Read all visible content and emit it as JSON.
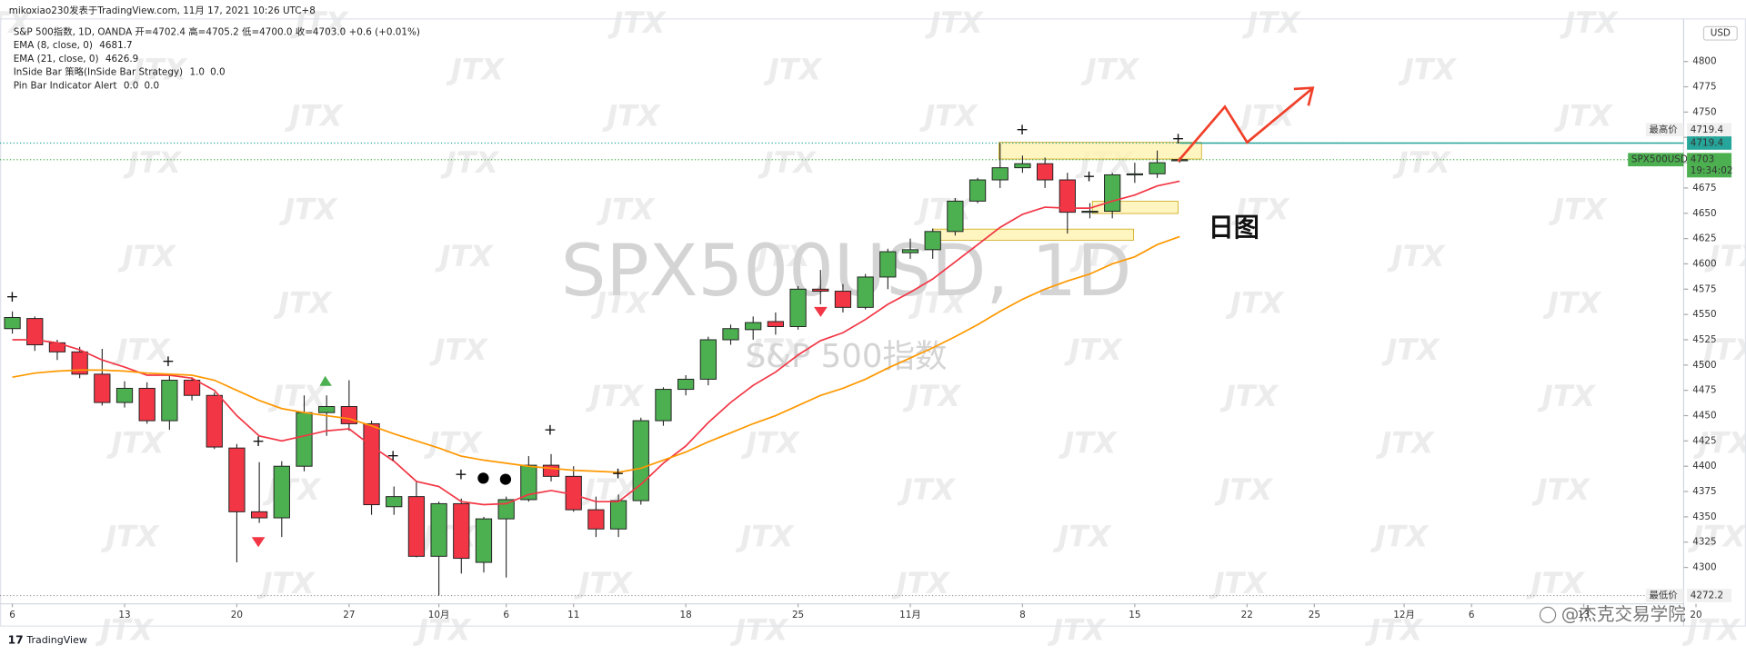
{
  "header": {
    "author_line": "mikoxiao230发表于TradingView.com, 11月 17, 2021 10:26 UTC+8",
    "symbol_line": "S&P 500指数, 1D, OANDA  开=4702.4  高=4705.2  低=4700.0  收=4703.0  +0.6 (+0.01%)",
    "indicators": [
      {
        "name": "EMA (8, close, 0)",
        "values": [
          {
            "text": "4681.7",
            "color": "#f23645"
          }
        ]
      },
      {
        "name": "EMA (21, close, 0)",
        "values": [
          {
            "text": "4626.9",
            "color": "#ff9800"
          }
        ]
      },
      {
        "name": "InSide Bar 策略(InSide Bar Strategy)",
        "values": [
          {
            "text": "1.0",
            "color": "#222222"
          },
          {
            "text": "0.0",
            "color": "#222222"
          }
        ]
      },
      {
        "name": "Pin Bar Indicator Alert",
        "values": [
          {
            "text": "0.0",
            "color": "#4caf50"
          },
          {
            "text": "0.0",
            "color": "#f23645"
          }
        ]
      }
    ]
  },
  "branding": {
    "logo": "TradingView",
    "watermark_text": "JTX",
    "author_tag": "@杰克交易学院"
  },
  "annotation": "日图",
  "chart_data": {
    "type": "candlestick",
    "title": "SPX500USD, 1D",
    "subtitle": "S&P 500指数",
    "up_color": "#4caf50",
    "down_color": "#f23645",
    "open": [
      4536,
      4546,
      4522,
      4513,
      4491,
      4463,
      4477,
      4445,
      4485,
      4470,
      4418,
      4355,
      4349,
      4400,
      4453,
      4459,
      4442,
      4360,
      4370,
      4311,
      4363,
      4305,
      4348,
      4367,
      4401,
      4390,
      4357,
      4338,
      4366,
      4445,
      4476,
      4486,
      4525,
      4535,
      4543,
      4538,
      4575,
      4573,
      4557,
      4587,
      4611,
      4614,
      4632,
      4662,
      4683,
      4695,
      4699,
      4683,
      4651,
      4652,
      4688,
      4689,
      4702.4
    ],
    "high": [
      4553,
      4548,
      4525,
      4518,
      4516,
      4484,
      4483,
      4490,
      4488,
      4473,
      4422,
      4404,
      4405,
      4470,
      4470,
      4485,
      4445,
      4380,
      4385,
      4365,
      4368,
      4350,
      4370,
      4410,
      4412,
      4400,
      4370,
      4372,
      4448,
      4478,
      4490,
      4528,
      4540,
      4548,
      4552,
      4578,
      4594,
      4580,
      4590,
      4615,
      4625,
      4635,
      4665,
      4685,
      4719.4,
      4707,
      4705,
      4690,
      4660,
      4690,
      4700,
      4712,
      4705.2
    ],
    "low": [
      4531,
      4514,
      4505,
      4487,
      4460,
      4458,
      4442,
      4436,
      4465,
      4417,
      4305,
      4344,
      4330,
      4395,
      4430,
      4435,
      4352,
      4352,
      4310,
      4272.2,
      4294,
      4295,
      4290,
      4365,
      4385,
      4355,
      4330,
      4330,
      4362,
      4440,
      4470,
      4480,
      4520,
      4525,
      4530,
      4535,
      4560,
      4552,
      4555,
      4575,
      4605,
      4605,
      4628,
      4660,
      4675,
      4690,
      4675,
      4630,
      4645,
      4645,
      4680,
      4685,
      4700.0
    ],
    "close": [
      4547,
      4520,
      4513,
      4491,
      4463,
      4477,
      4445,
      4485,
      4470,
      4419,
      4355,
      4349,
      4400,
      4453,
      4459,
      4442,
      4362,
      4370,
      4311,
      4363,
      4309,
      4348,
      4367,
      4401,
      4390,
      4357,
      4338,
      4366,
      4445,
      4476,
      4486,
      4525,
      4536,
      4542,
      4538,
      4575,
      4573,
      4557,
      4587,
      4612,
      4614,
      4632,
      4662,
      4683,
      4695,
      4699,
      4683,
      4651,
      4652,
      4688,
      4689,
      4700,
      4703.0
    ],
    "series": [
      {
        "name": "EMA 8",
        "color": "#f23645",
        "values": [
          4525,
          4525,
          4522,
          4515,
          4505,
          4498,
          4490,
          4490,
          4487,
          4475,
          4450,
          4430,
          4425,
          4430,
          4435,
          4437,
          4420,
          4405,
          4385,
          4380,
          4365,
          4362,
          4363,
          4372,
          4376,
          4372,
          4365,
          4365,
          4382,
          4403,
          4420,
          4443,
          4463,
          4480,
          4493,
          4510,
          4524,
          4532,
          4545,
          4560,
          4572,
          4585,
          4602,
          4619,
          4636,
          4649,
          4656,
          4655,
          4655,
          4662,
          4668,
          4677,
          4681.7
        ]
      },
      {
        "name": "EMA 21",
        "color": "#ff9800",
        "values": [
          4488,
          4492,
          4494,
          4495,
          4495,
          4494,
          4492,
          4491,
          4490,
          4485,
          4475,
          4465,
          4457,
          4453,
          4450,
          4447,
          4440,
          4432,
          4425,
          4418,
          4410,
          4406,
          4403,
          4400,
          4398,
          4396,
          4395,
          4394,
          4398,
          4406,
          4414,
          4424,
          4433,
          4442,
          4450,
          4460,
          4470,
          4477,
          4486,
          4497,
          4507,
          4517,
          4528,
          4540,
          4553,
          4565,
          4575,
          4583,
          4590,
          4600,
          4607,
          4619,
          4626.9
        ]
      }
    ],
    "xlim": [
      -0.55,
      74.45
    ],
    "xticks": [
      {
        "value": 0,
        "label": "6"
      },
      {
        "value": 5,
        "label": "13"
      },
      {
        "value": 10,
        "label": "20"
      },
      {
        "value": 15,
        "label": "27"
      },
      {
        "value": 19,
        "label": "10月"
      },
      {
        "value": 22,
        "label": "6"
      },
      {
        "value": 25,
        "label": "11"
      },
      {
        "value": 30,
        "label": "18"
      },
      {
        "value": 35,
        "label": "25"
      },
      {
        "value": 40,
        "label": "11月"
      },
      {
        "value": 45,
        "label": "8"
      },
      {
        "value": 50,
        "label": "15"
      },
      {
        "value": 55,
        "label": "22"
      },
      {
        "value": 58,
        "label": "25"
      },
      {
        "value": 62,
        "label": "12月"
      },
      {
        "value": 65,
        "label": "6"
      },
      {
        "value": 70,
        "label": "13"
      },
      {
        "value": 75,
        "label": "20"
      }
    ],
    "ylim": [
      4264,
      4841
    ],
    "yticks": [
      4300,
      4325,
      4350,
      4375,
      4400,
      4425,
      4450,
      4475,
      4500,
      4525,
      4550,
      4575,
      4600,
      4625,
      4650,
      4675,
      4700,
      4725,
      4750,
      4775,
      4800
    ],
    "currency": "USD",
    "high_label": "最高价",
    "high_value": 4719.4,
    "low_label": "最低价",
    "low_value": 4272.2,
    "last_symbol": "SPX500USD",
    "last_value": 4703.0,
    "countdown": "19:34:02",
    "grid": false
  }
}
